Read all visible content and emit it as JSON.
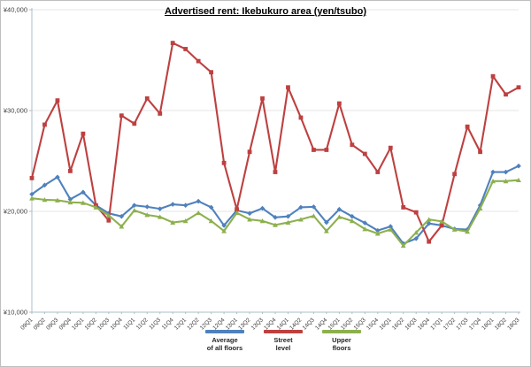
{
  "window": {
    "background": "#ffffff",
    "border_color": "#bfbfbf"
  },
  "chart_data": {
    "type": "line",
    "title": "Advertised rent: Ikebukuro area (yen/tsubo)",
    "categories": [
      "09Q1",
      "09Q2",
      "09Q3",
      "09Q4",
      "10Q1",
      "10Q2",
      "10Q3",
      "10Q4",
      "11Q1",
      "11Q2",
      "11Q3",
      "11Q4",
      "12Q1",
      "12Q2",
      "12Q3",
      "12Q4",
      "13Q1",
      "13Q2",
      "13Q3",
      "13Q4",
      "14Q1",
      "14Q2",
      "14Q3",
      "14Q4",
      "15Q1",
      "15Q2",
      "15Q3",
      "15Q4",
      "16Q1",
      "16Q2",
      "16Q3",
      "16Q4",
      "17Q1",
      "17Q2",
      "17Q3",
      "17Q4",
      "18Q1",
      "18Q2",
      "18Q3"
    ],
    "series": [
      {
        "name": "Average of all floors",
        "legend_lines": "Average\nof all floors",
        "color": "#4F81BD",
        "marker": "diamond",
        "values": [
          21700,
          22600,
          23400,
          21200,
          21900,
          20600,
          19800,
          19500,
          20600,
          20450,
          20250,
          20700,
          20600,
          21000,
          20400,
          18600,
          20100,
          19800,
          20300,
          19400,
          19500,
          20400,
          20450,
          18900,
          20200,
          19500,
          18850,
          18100,
          18500,
          16800,
          17300,
          18800,
          18600,
          18250,
          18200,
          20600,
          23900,
          23900,
          24500
        ]
      },
      {
        "name": "Street level",
        "legend_lines": "Street\nlevel",
        "color": "#BE4040",
        "marker": "square",
        "values": [
          23300,
          28600,
          31000,
          24000,
          27700,
          20600,
          19100,
          29500,
          28700,
          31200,
          29700,
          36700,
          36100,
          34900,
          33800,
          24800,
          20200,
          25900,
          31200,
          23900,
          32300,
          29300,
          26100,
          26100,
          30700,
          26600,
          25700,
          23900,
          26300,
          20400,
          19900,
          17000,
          18600,
          23700,
          28400,
          25900,
          33400,
          31600,
          32300
        ]
      },
      {
        "name": "Upper floors",
        "legend_lines": "Upper\nfloors",
        "color": "#8DB04E",
        "marker": "triangle",
        "values": [
          21300,
          21150,
          21100,
          20900,
          20850,
          20400,
          19600,
          18500,
          20100,
          19650,
          19450,
          18900,
          19050,
          19850,
          19050,
          18050,
          19850,
          19200,
          19050,
          18650,
          18900,
          19200,
          19550,
          18050,
          19450,
          19050,
          18250,
          17800,
          18200,
          16600,
          17900,
          19200,
          19000,
          18200,
          18000,
          20300,
          23000,
          23000,
          23100
        ]
      }
    ],
    "ylim": [
      10000,
      40000
    ],
    "ytick_step": 10000,
    "ytick_labels": [
      "¥10,000",
      "¥20,000",
      "¥30,000",
      "¥40,000"
    ],
    "grid": true,
    "gridline_color": "#e4e4e4",
    "axis_color": "#aabfca",
    "tick_label_color": "#404040",
    "legend_position": "bottom"
  }
}
